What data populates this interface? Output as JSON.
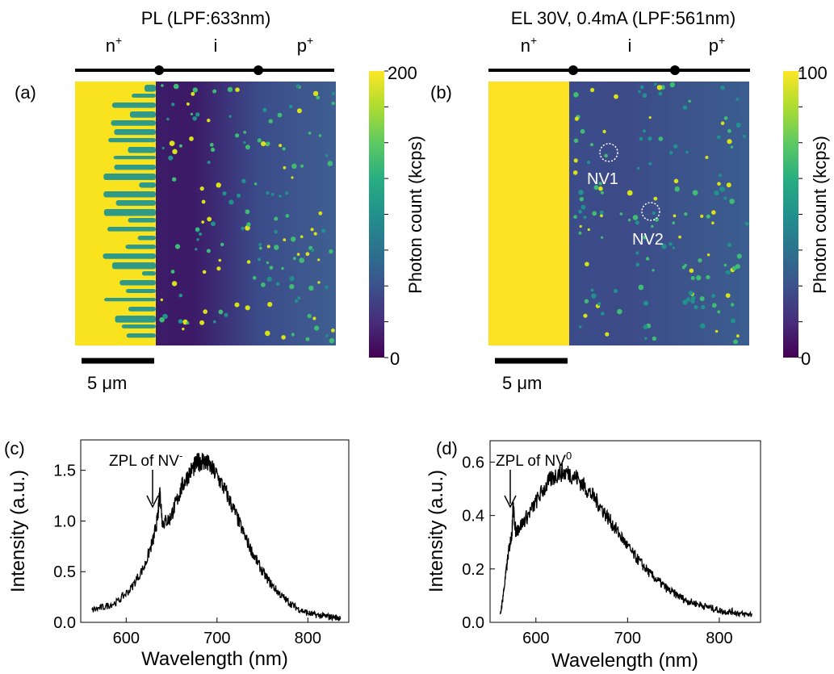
{
  "panels": {
    "a": {
      "label": "(a)",
      "title": "PL (LPF:633nm)",
      "regions": [
        "n",
        "i",
        "p"
      ],
      "region_sup": [
        "+",
        "",
        "+"
      ],
      "scale_bar": "5 μm",
      "colorbar_label": "Photon count (kcps)",
      "colorbar_ticks": [
        "200",
        "0"
      ],
      "colorbar_range": [
        0,
        200
      ]
    },
    "b": {
      "label": "(b)",
      "title": "EL 30V, 0.4mA (LPF:561nm)",
      "regions": [
        "n",
        "i",
        "p"
      ],
      "region_sup": [
        "+",
        "",
        "+"
      ],
      "scale_bar": "5 μm",
      "colorbar_label": "Photon count (kcps)",
      "colorbar_ticks": [
        "100",
        "0"
      ],
      "colorbar_range": [
        0,
        100
      ],
      "annotations": [
        "NV1",
        "NV2"
      ]
    }
  },
  "chart_data": [
    {
      "panel": "(c)",
      "type": "line",
      "xlabel": "Wavelength (nm)",
      "ylabel": "Intensity (a.u.)",
      "xlim": [
        550,
        845
      ],
      "ylim": [
        0,
        1.8
      ],
      "xticks": [
        600,
        700,
        800
      ],
      "yticks": [
        0.0,
        0.5,
        1.0,
        1.5
      ],
      "ytick_labels": [
        "0.0",
        "0.5",
        "1.0",
        "1.5"
      ],
      "annotation": {
        "text": "ZPL of NV",
        "sup": "-",
        "x": 637,
        "y": 1.38
      },
      "series": [
        {
          "x": [
            562,
            575,
            590,
            605,
            620,
            630,
            635,
            637,
            640,
            648,
            655,
            662,
            670,
            678,
            684,
            690,
            700,
            710,
            720,
            730,
            740,
            750,
            760,
            770,
            780,
            790,
            800,
            810,
            820,
            830,
            836
          ],
          "y": [
            0.12,
            0.15,
            0.2,
            0.33,
            0.55,
            0.82,
            1.05,
            1.3,
            0.98,
            1.02,
            1.18,
            1.35,
            1.48,
            1.57,
            1.6,
            1.56,
            1.45,
            1.28,
            1.08,
            0.86,
            0.67,
            0.5,
            0.37,
            0.27,
            0.19,
            0.13,
            0.09,
            0.07,
            0.06,
            0.05,
            0.04
          ]
        }
      ]
    },
    {
      "panel": "(d)",
      "type": "line",
      "xlabel": "Wavelength (nm)",
      "ylabel": "Intensity (a.u.)",
      "xlim": [
        550,
        845
      ],
      "ylim": [
        0,
        0.68
      ],
      "xticks": [
        600,
        700,
        800
      ],
      "yticks": [
        0.0,
        0.2,
        0.4,
        0.6
      ],
      "ytick_labels": [
        "0.0",
        "0.2",
        "0.4",
        "0.6"
      ],
      "annotation": {
        "text": "ZPL of NV",
        "sup": "0",
        "x": 575,
        "y": 0.45
      },
      "series": [
        {
          "x": [
            561,
            565,
            570,
            574,
            575,
            578,
            585,
            595,
            605,
            615,
            625,
            635,
            645,
            655,
            665,
            675,
            685,
            695,
            705,
            715,
            725,
            735,
            745,
            755,
            765,
            775,
            785,
            795,
            805,
            815,
            825,
            836
          ],
          "y": [
            0.02,
            0.12,
            0.26,
            0.34,
            0.44,
            0.34,
            0.37,
            0.42,
            0.48,
            0.53,
            0.56,
            0.56,
            0.54,
            0.5,
            0.46,
            0.41,
            0.36,
            0.31,
            0.26,
            0.22,
            0.18,
            0.15,
            0.12,
            0.1,
            0.08,
            0.07,
            0.06,
            0.05,
            0.04,
            0.04,
            0.03,
            0.03
          ]
        }
      ]
    }
  ]
}
